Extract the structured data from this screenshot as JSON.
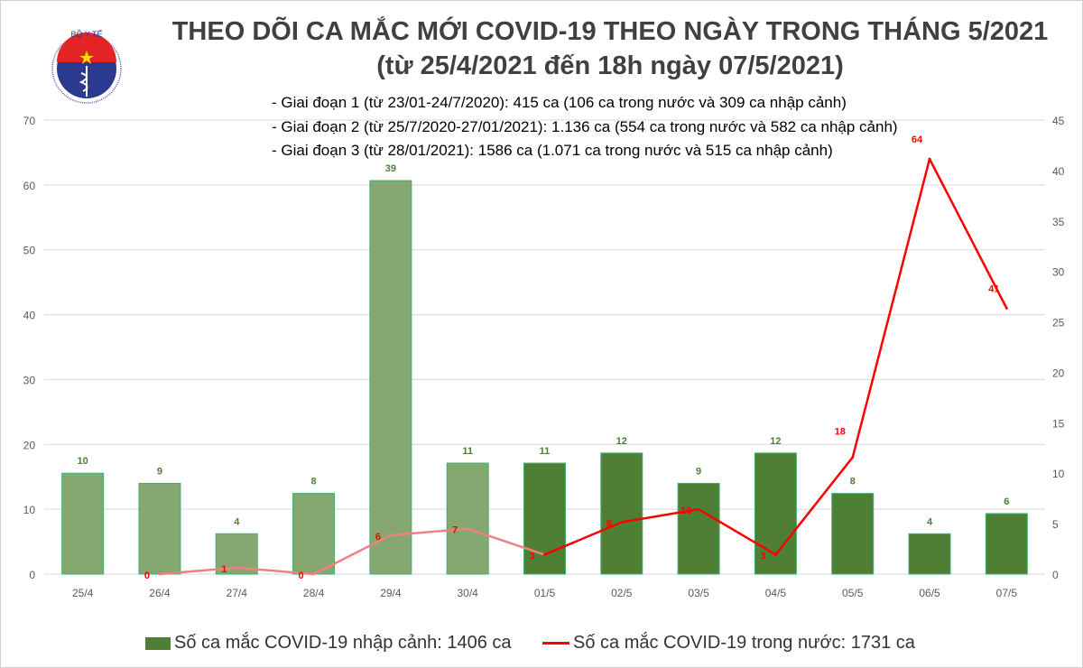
{
  "title": "THEO DÕI CA MẮC MỚI COVID-19 THEO NGÀY TRONG THÁNG 5/2021",
  "subtitle": "(từ 25/4/2021 đến 18h ngày 07/5/2021)",
  "notes": [
    "- Giai đoạn 1 (từ 23/01-24/7/2020): 415 ca (106 ca trong nước và 309 ca nhập cảnh)",
    "- Giai đoạn 2 (từ 25/7/2020-27/01/2021): 1.136 ca (554 ca trong nước và 582 ca nhập cảnh)",
    "- Giai đoạn 3 (từ 28/01/2021): 1586 ca (1.071 ca trong nước và 515 ca nhập cảnh)"
  ],
  "logo": {
    "top_text": "BỘ Y TẾ",
    "bottom_text": "MINISTRY OF HEALTH"
  },
  "chart_data": {
    "type": "bar+line",
    "categories": [
      "25/4",
      "26/4",
      "27/4",
      "28/4",
      "29/4",
      "30/4",
      "01/5",
      "02/5",
      "03/5",
      "04/5",
      "05/5",
      "06/5",
      "07/5"
    ],
    "series": [
      {
        "name": "Số ca mắc COVID-19 nhập cảnh: 1406 ca",
        "type": "bar",
        "axis": "right",
        "color": "#4e7f35",
        "faded_color": "#84a870",
        "values": [
          10,
          9,
          4,
          8,
          39,
          11,
          11,
          12,
          9,
          12,
          8,
          4,
          6
        ]
      },
      {
        "name": "Số ca mắc COVID-19 trong nước: 1731 ca",
        "type": "line",
        "axis": "left",
        "color": "#ff0000",
        "faded_color": "#f08080",
        "values": [
          null,
          0,
          1,
          0,
          6,
          7,
          3,
          8,
          10,
          3,
          18,
          64,
          41
        ]
      }
    ],
    "faded_through_index": 6,
    "left_axis": {
      "ylim": [
        0,
        70
      ],
      "ticks": [
        0,
        10,
        20,
        30,
        40,
        50,
        60,
        70
      ]
    },
    "right_axis": {
      "ylim": [
        0,
        45
      ],
      "ticks": [
        0,
        5,
        10,
        15,
        20,
        25,
        30,
        35,
        40,
        45
      ]
    },
    "grid": true,
    "legend": "bottom"
  }
}
